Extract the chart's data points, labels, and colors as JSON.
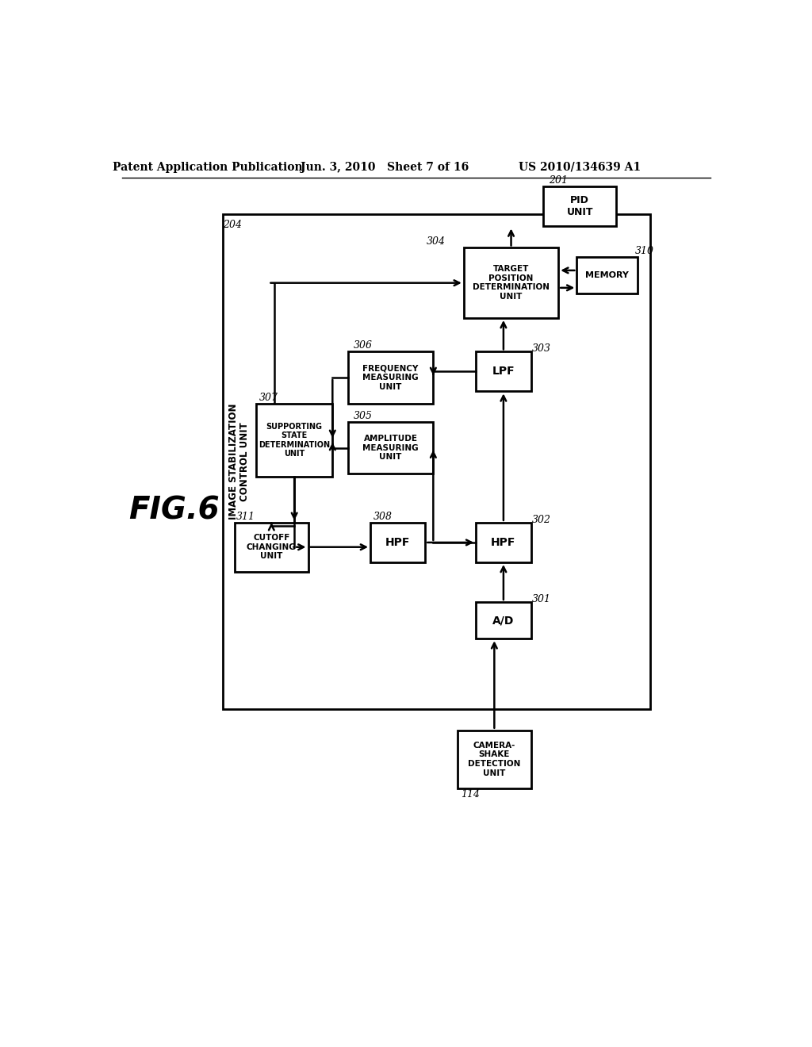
{
  "title_left": "Patent Application Publication",
  "title_mid": "Jun. 3, 2010   Sheet 7 of 16",
  "title_right": "US 2010/134639 A1",
  "fig_label": "FIG.6",
  "bg_color": "#ffffff"
}
